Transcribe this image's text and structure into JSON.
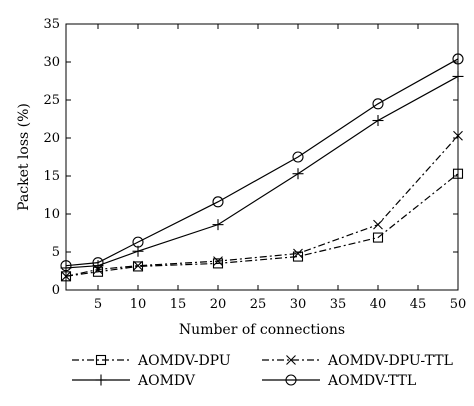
{
  "chart_data": {
    "type": "line",
    "xlabel": "Number of connections",
    "ylabel": "Packet loss (%)",
    "xlim": [
      1,
      50
    ],
    "ylim": [
      0,
      35
    ],
    "xticks": [
      5,
      10,
      15,
      20,
      25,
      30,
      35,
      40,
      45,
      50
    ],
    "yticks": [
      0,
      5,
      10,
      15,
      20,
      25,
      30,
      35
    ],
    "grid": false,
    "legend_position": "bottom",
    "series": [
      {
        "name": "AOMDV-DPU",
        "marker": "square",
        "dash": "dash-dot",
        "x": [
          1,
          5,
          10,
          20,
          30,
          40,
          50
        ],
        "y": [
          1.8,
          2.4,
          3.1,
          3.5,
          4.4,
          6.9,
          15.3
        ]
      },
      {
        "name": "AOMDV-DPU-TTL",
        "marker": "cross",
        "dash": "dash-dot",
        "x": [
          1,
          5,
          10,
          20,
          30,
          40,
          50
        ],
        "y": [
          1.8,
          2.7,
          3.2,
          3.8,
          4.8,
          8.6,
          20.3
        ]
      },
      {
        "name": "AOMDV",
        "marker": "plus",
        "dash": "solid",
        "x": [
          1,
          5,
          10,
          20,
          30,
          40,
          50
        ],
        "y": [
          2.9,
          3.2,
          5.1,
          8.6,
          15.3,
          22.3,
          28.1
        ]
      },
      {
        "name": "AOMDV-TTL",
        "marker": "circle",
        "dash": "solid",
        "x": [
          1,
          5,
          10,
          20,
          30,
          40,
          50
        ],
        "y": [
          3.2,
          3.6,
          6.3,
          11.6,
          17.5,
          24.5,
          30.4
        ]
      }
    ]
  }
}
